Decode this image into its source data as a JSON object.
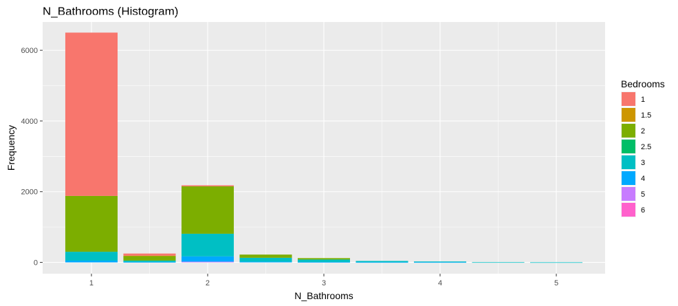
{
  "chart_data": {
    "type": "bar",
    "stacked": true,
    "title": "N_Bathrooms (Histogram)",
    "xlabel": "N_Bathrooms",
    "ylabel": "Frequency",
    "xlim": [
      0.58,
      5.42
    ],
    "ylim": [
      -320,
      6800
    ],
    "x_ticks": [
      1,
      2,
      3,
      4,
      5
    ],
    "y_ticks": [
      0,
      2000,
      4000,
      6000
    ],
    "grid": true,
    "background": "#ebebeb",
    "legend": {
      "title": "Bedrooms",
      "position": "right",
      "entries": [
        {
          "label": "1",
          "color": "#f8766d"
        },
        {
          "label": "1.5",
          "color": "#cd9600"
        },
        {
          "label": "2",
          "color": "#7cae00"
        },
        {
          "label": "2.5",
          "color": "#00be67"
        },
        {
          "label": "3",
          "color": "#00bfc4"
        },
        {
          "label": "4",
          "color": "#00a9ff"
        },
        {
          "label": "5",
          "color": "#c77cff"
        },
        {
          "label": "6",
          "color": "#ff61cc"
        }
      ]
    },
    "bin_width": 0.45,
    "bins": [
      {
        "x": 1.0,
        "segments": {
          "1": 4620,
          "2": 1580,
          "3": 250,
          "4": 50
        }
      },
      {
        "x": 1.5,
        "segments": {
          "1": 60,
          "1.5": 10,
          "2": 130,
          "3": 40,
          "4": 10
        }
      },
      {
        "x": 2.0,
        "segments": {
          "1": 30,
          "2": 1340,
          "3": 640,
          "4": 150,
          "5": 20
        }
      },
      {
        "x": 2.5,
        "segments": {
          "2": 90,
          "3": 110,
          "4": 20
        }
      },
      {
        "x": 3.0,
        "segments": {
          "2": 40,
          "3": 70,
          "4": 10
        }
      },
      {
        "x": 3.5,
        "segments": {
          "3": 35,
          "4": 5
        }
      },
      {
        "x": 4.0,
        "segments": {
          "3": 20,
          "4": 5
        }
      },
      {
        "x": 4.5,
        "segments": {
          "3": 5
        }
      },
      {
        "x": 5.0,
        "segments": {
          "3": 3
        }
      }
    ]
  }
}
